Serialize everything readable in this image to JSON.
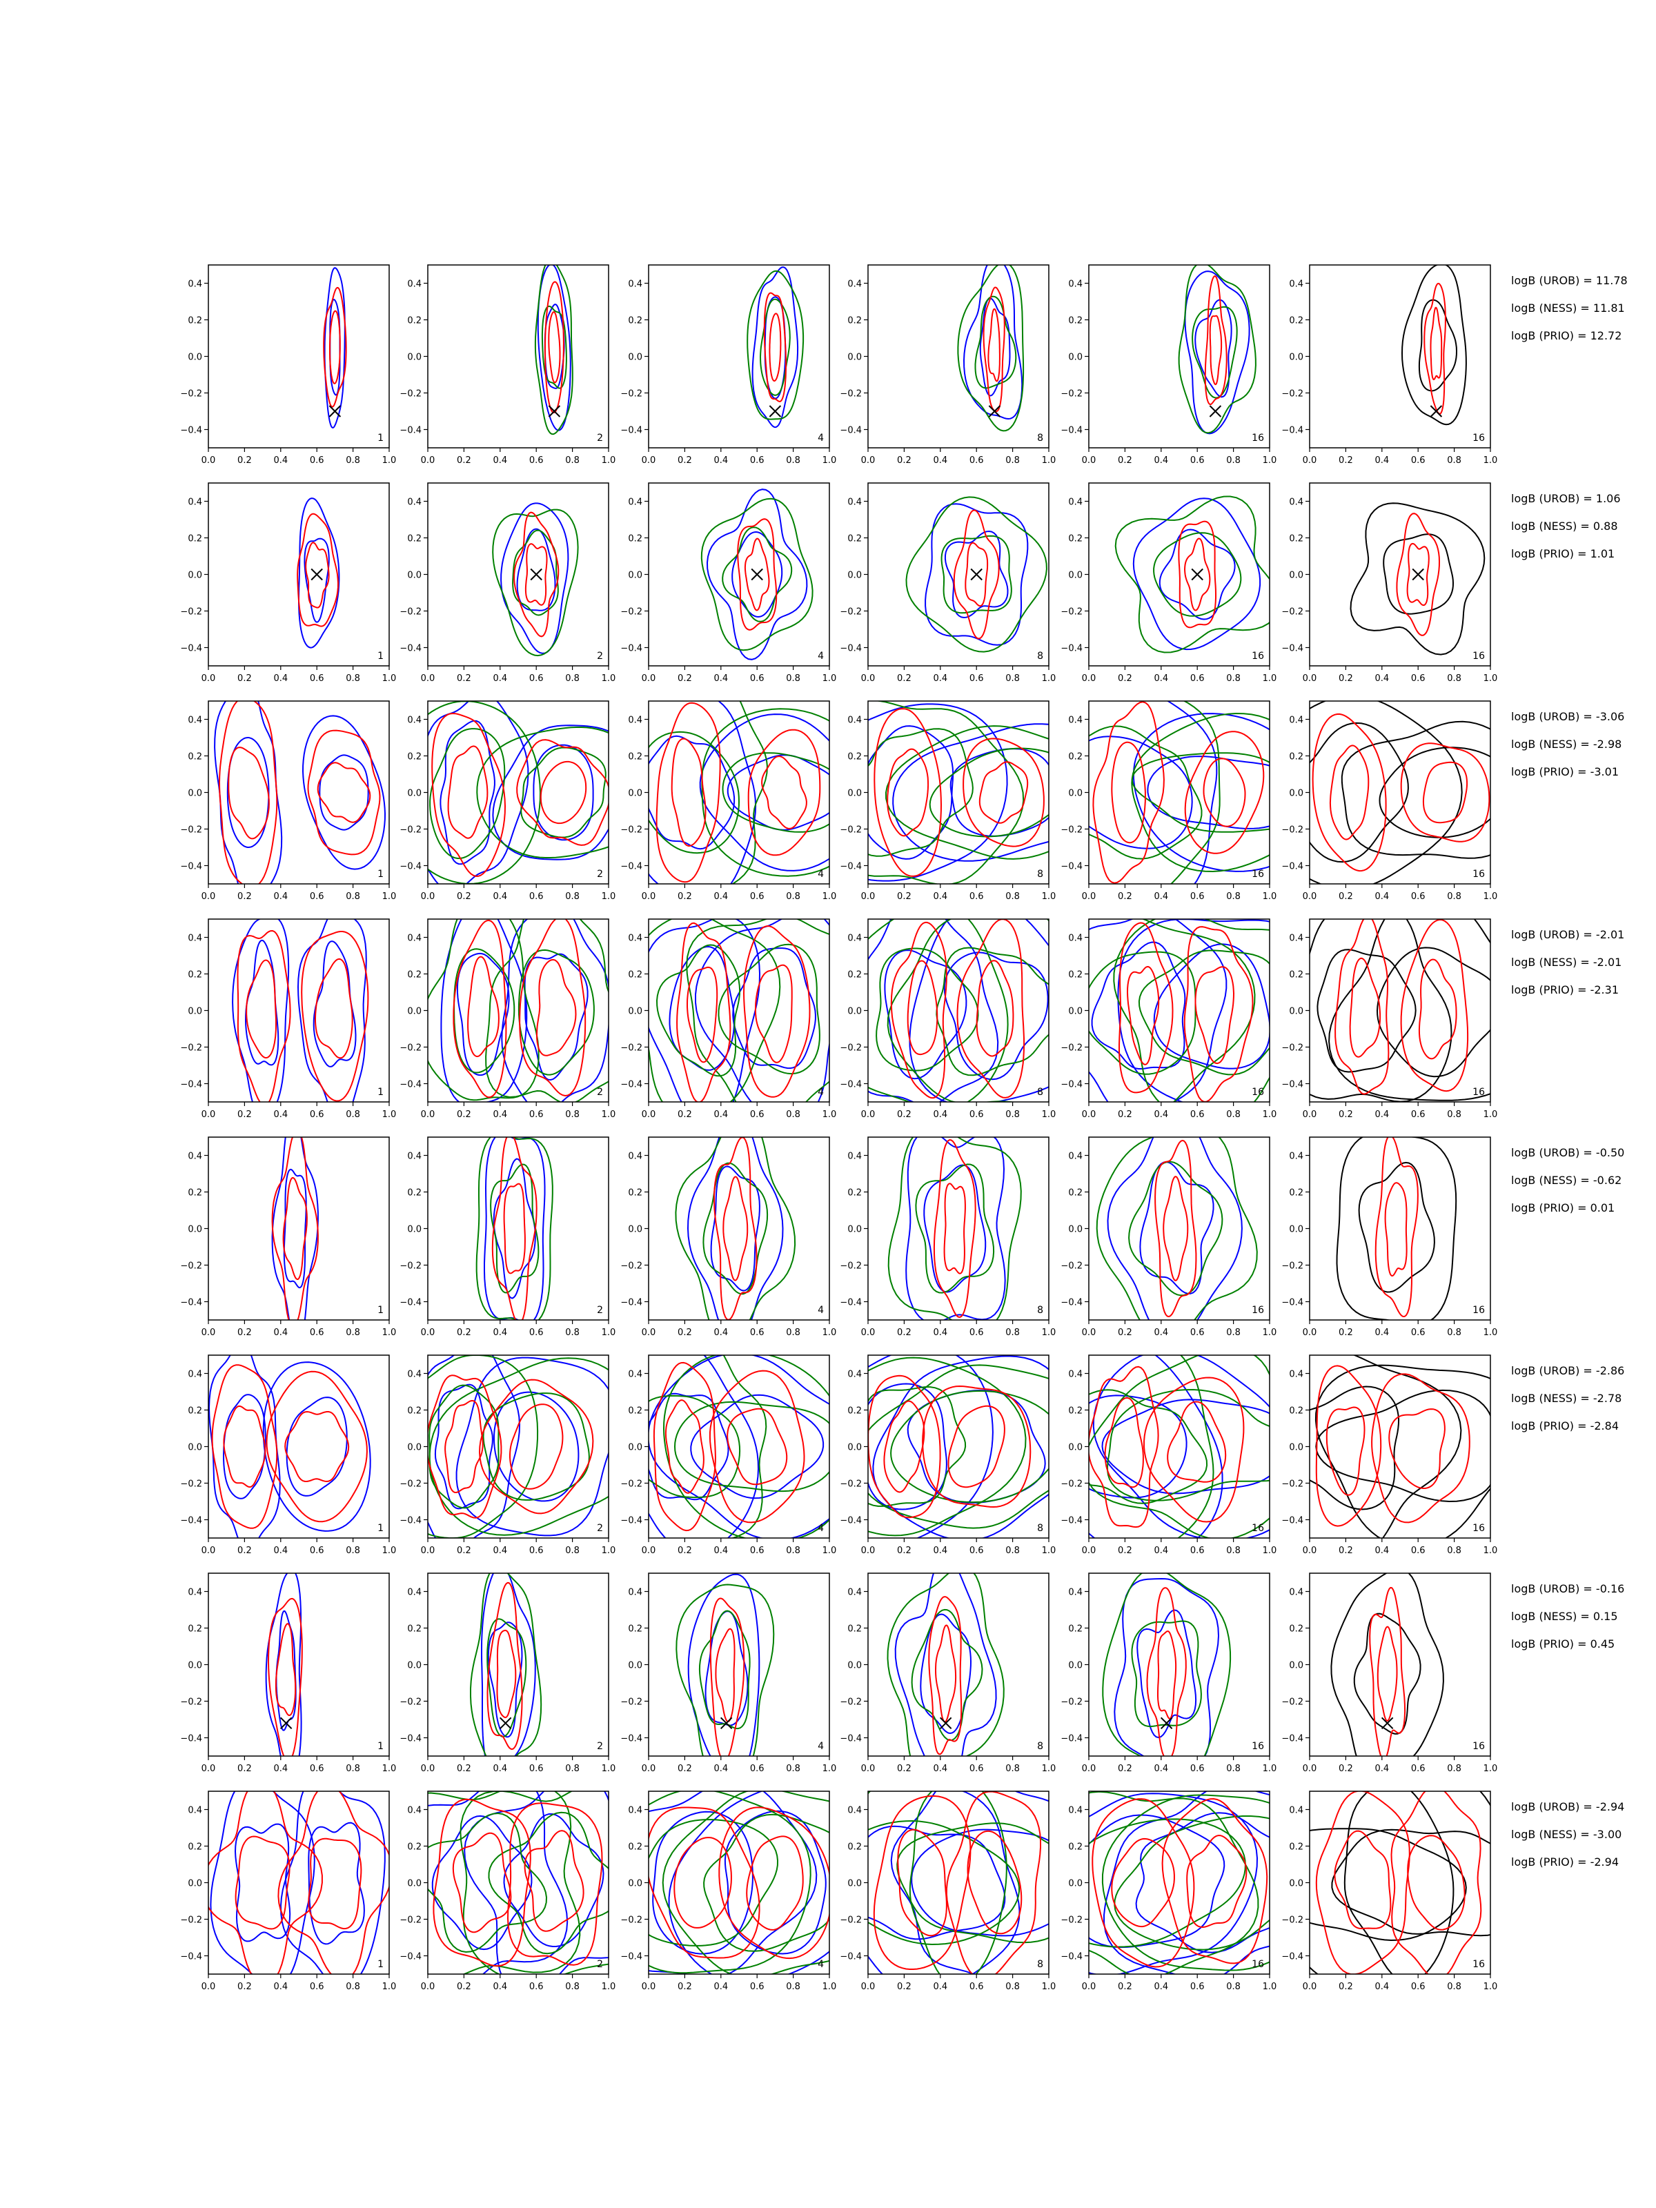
{
  "colors": {
    "blue": "#0000ff",
    "green": "#008000",
    "red": "#ff0000",
    "black": "#000000"
  },
  "chart_data": {
    "type": "contour",
    "layout": {
      "rows": 8,
      "cols": 6
    },
    "xlim": [
      0.0,
      1.0
    ],
    "ylim": [
      -0.5,
      0.5
    ],
    "xticks": [
      "0.0",
      "0.2",
      "0.4",
      "0.6",
      "0.8",
      "1.0"
    ],
    "yticks": [
      "0.4",
      "0.2",
      "0.0",
      "−0.2",
      "−0.4"
    ],
    "ytick_values": [
      0.4,
      0.2,
      0.0,
      -0.2,
      -0.4
    ],
    "xtick_values": [
      0.0,
      0.2,
      0.4,
      0.6,
      0.8,
      1.0
    ],
    "column_labels": [
      "1",
      "2",
      "4",
      "8",
      "16",
      "16"
    ],
    "column_colors": [
      [
        "blue",
        "red"
      ],
      [
        "blue",
        "green",
        "red"
      ],
      [
        "blue",
        "green",
        "red"
      ],
      [
        "blue",
        "green",
        "red"
      ],
      [
        "blue",
        "green",
        "red"
      ],
      [
        "black",
        "red"
      ]
    ],
    "rows": [
      {
        "modes": [
          [
            0.7,
            0.05,
            0.03,
            0.22
          ]
        ],
        "truth": [
          0.7,
          -0.3
        ],
        "logB": [
          "logB (UROB) = 11.78",
          "logB (NESS) = 11.81",
          "logB (PRIO) = 12.72"
        ]
      },
      {
        "modes": [
          [
            0.6,
            0.0,
            0.06,
            0.2
          ]
        ],
        "truth": [
          0.6,
          0.0
        ],
        "logB": [
          "logB (UROB) = 1.06",
          "logB (NESS) = 0.88",
          "logB (PRIO) = 1.01"
        ]
      },
      {
        "modes": [
          [
            0.22,
            0.0,
            0.1,
            0.3
          ],
          [
            0.75,
            0.0,
            0.12,
            0.2
          ]
        ],
        "truth": null,
        "logB": [
          "logB (UROB) = -3.06",
          "logB (NESS) = -2.98",
          "logB (PRIO) = -3.01"
        ]
      },
      {
        "modes": [
          [
            0.3,
            0.0,
            0.08,
            0.3
          ],
          [
            0.7,
            0.0,
            0.1,
            0.3
          ]
        ],
        "truth": null,
        "logB": [
          "logB (UROB) = -2.01",
          "logB (NESS) = -2.01",
          "logB (PRIO) = -2.31"
        ]
      },
      {
        "modes": [
          [
            0.48,
            0.0,
            0.06,
            0.3
          ]
        ],
        "truth": null,
        "logB": [
          "logB (UROB) = -0.50",
          "logB (NESS) = -0.62",
          "logB (PRIO) = 0.01"
        ]
      },
      {
        "modes": [
          [
            0.2,
            0.0,
            0.1,
            0.28
          ],
          [
            0.6,
            0.0,
            0.15,
            0.25
          ]
        ],
        "truth": null,
        "logB": [
          "logB (UROB) = -2.86",
          "logB (NESS) = -2.78",
          "logB (PRIO) = -2.84"
        ]
      },
      {
        "modes": [
          [
            0.43,
            -0.05,
            0.05,
            0.28
          ]
        ],
        "truth": [
          0.43,
          -0.32
        ],
        "logB": [
          "logB (UROB) = -0.16",
          "logB (NESS) = 0.15",
          "logB (PRIO) = 0.45"
        ]
      },
      {
        "modes": [
          [
            0.3,
            0.0,
            0.15,
            0.3
          ],
          [
            0.7,
            0.0,
            0.15,
            0.3
          ]
        ],
        "truth": null,
        "logB": [
          "logB (UROB) = -2.94",
          "logB (NESS) = -3.00",
          "logB (PRIO) = -2.94"
        ]
      }
    ]
  }
}
